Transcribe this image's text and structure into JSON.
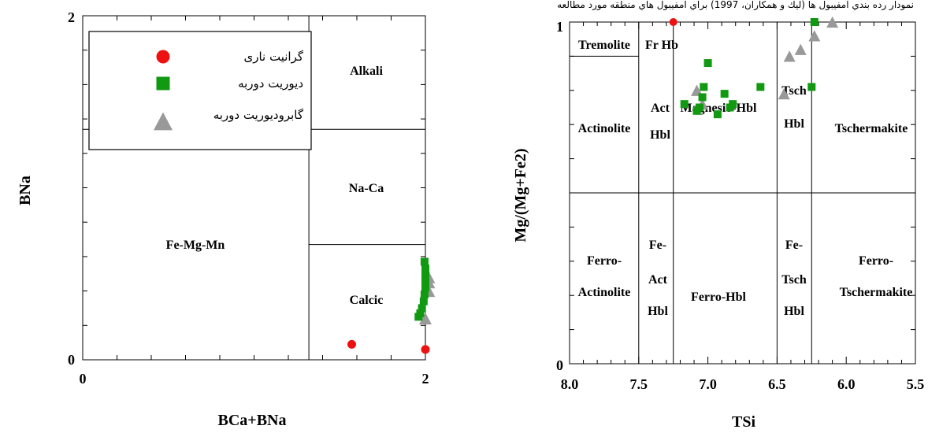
{
  "chart_data": [
    {
      "type": "scatter",
      "title": "",
      "xlabel": "BCa+BNa",
      "ylabel": "BNa",
      "xlim": [
        0,
        2
      ],
      "ylim": [
        0,
        2
      ],
      "x_tick_labels": [
        "0",
        "2"
      ],
      "y_tick_labels": [
        "0",
        "2"
      ],
      "grid": false,
      "legend_position": "top-left",
      "regions": [
        {
          "label": "Alkali"
        },
        {
          "label": "Na-Ca"
        },
        {
          "label": "Calcic"
        },
        {
          "label": "Fe-Mg-Mn"
        }
      ],
      "series": [
        {
          "name": "گرانيت نارى",
          "marker": "circle",
          "color": "#ee1111",
          "points": [
            [
              1.57,
              0.09
            ],
            [
              2.0,
              0.06
            ]
          ]
        },
        {
          "name": "ديوريت دوربه",
          "marker": "square",
          "color": "#119911",
          "points": [
            [
              1.96,
              0.25
            ],
            [
              1.97,
              0.27
            ],
            [
              1.98,
              0.3
            ],
            [
              1.99,
              0.34
            ],
            [
              1.995,
              0.38
            ],
            [
              2.0,
              0.42
            ],
            [
              2.0,
              0.46
            ],
            [
              2.0,
              0.49
            ],
            [
              2.0,
              0.53
            ],
            [
              1.995,
              0.57
            ]
          ]
        },
        {
          "name": "گابروديوريت دوربه",
          "marker": "triangle",
          "color": "#999999",
          "points": [
            [
              2.0,
              0.24
            ],
            [
              2.02,
              0.4
            ],
            [
              2.02,
              0.45
            ],
            [
              2.02,
              0.48
            ]
          ]
        }
      ]
    },
    {
      "type": "scatter",
      "title": "",
      "top_caption": "نمودار رده بندي آمفيبول ها (ليك و همكاران، 1997) براي آمفيبول هاي منطقه مورد مطالعه",
      "xlabel": "TSi",
      "ylabel": "Mg/(Mg+Fe2)",
      "xlim": [
        8.0,
        5.5
      ],
      "ylim": [
        0,
        1
      ],
      "x_tick_labels": [
        "8.0",
        "7.5",
        "7.0",
        "6.5",
        "6.0",
        "5.5"
      ],
      "y_tick_labels": [
        "0",
        "1"
      ],
      "grid": false,
      "regions": [
        {
          "label": "Tremolite"
        },
        {
          "label": "Fr Hb"
        },
        {
          "label": "Actinolite"
        },
        {
          "lines": [
            "Act",
            "Hbl"
          ]
        },
        {
          "label": "Magnesio-Hbl"
        },
        {
          "lines": [
            "Tsch",
            "Hbl"
          ]
        },
        {
          "label": "Tschermakite"
        },
        {
          "lines": [
            "Ferro-",
            "Actinolite"
          ]
        },
        {
          "lines": [
            "Fe-",
            "Act",
            "Hbl"
          ]
        },
        {
          "label": "Ferro-Hbl"
        },
        {
          "lines": [
            "Fe-",
            "Tsch",
            "Hbl"
          ]
        },
        {
          "lines": [
            "Ferro-",
            "Tschermakite"
          ]
        }
      ],
      "series": [
        {
          "name": "",
          "marker": "circle",
          "color": "#ee1111",
          "points": [
            [
              7.25,
              1.0
            ]
          ]
        },
        {
          "name": "",
          "marker": "square",
          "color": "#119911",
          "points": [
            [
              7.17,
              0.76
            ],
            [
              7.08,
              0.74
            ],
            [
              7.06,
              0.75
            ],
            [
              7.04,
              0.78
            ],
            [
              7.03,
              0.81
            ],
            [
              7.0,
              0.88
            ],
            [
              6.93,
              0.73
            ],
            [
              6.88,
              0.79
            ],
            [
              6.84,
              0.75
            ],
            [
              6.82,
              0.76
            ],
            [
              6.62,
              0.81
            ],
            [
              6.25,
              0.81
            ],
            [
              6.23,
              1.0
            ]
          ]
        },
        {
          "name": "",
          "marker": "triangle",
          "color": "#999999",
          "points": [
            [
              7.08,
              0.8
            ],
            [
              7.04,
              0.76
            ],
            [
              6.45,
              0.79
            ],
            [
              6.41,
              0.9
            ],
            [
              6.33,
              0.92
            ],
            [
              6.23,
              0.96
            ],
            [
              6.1,
              1.0
            ]
          ]
        }
      ]
    }
  ]
}
